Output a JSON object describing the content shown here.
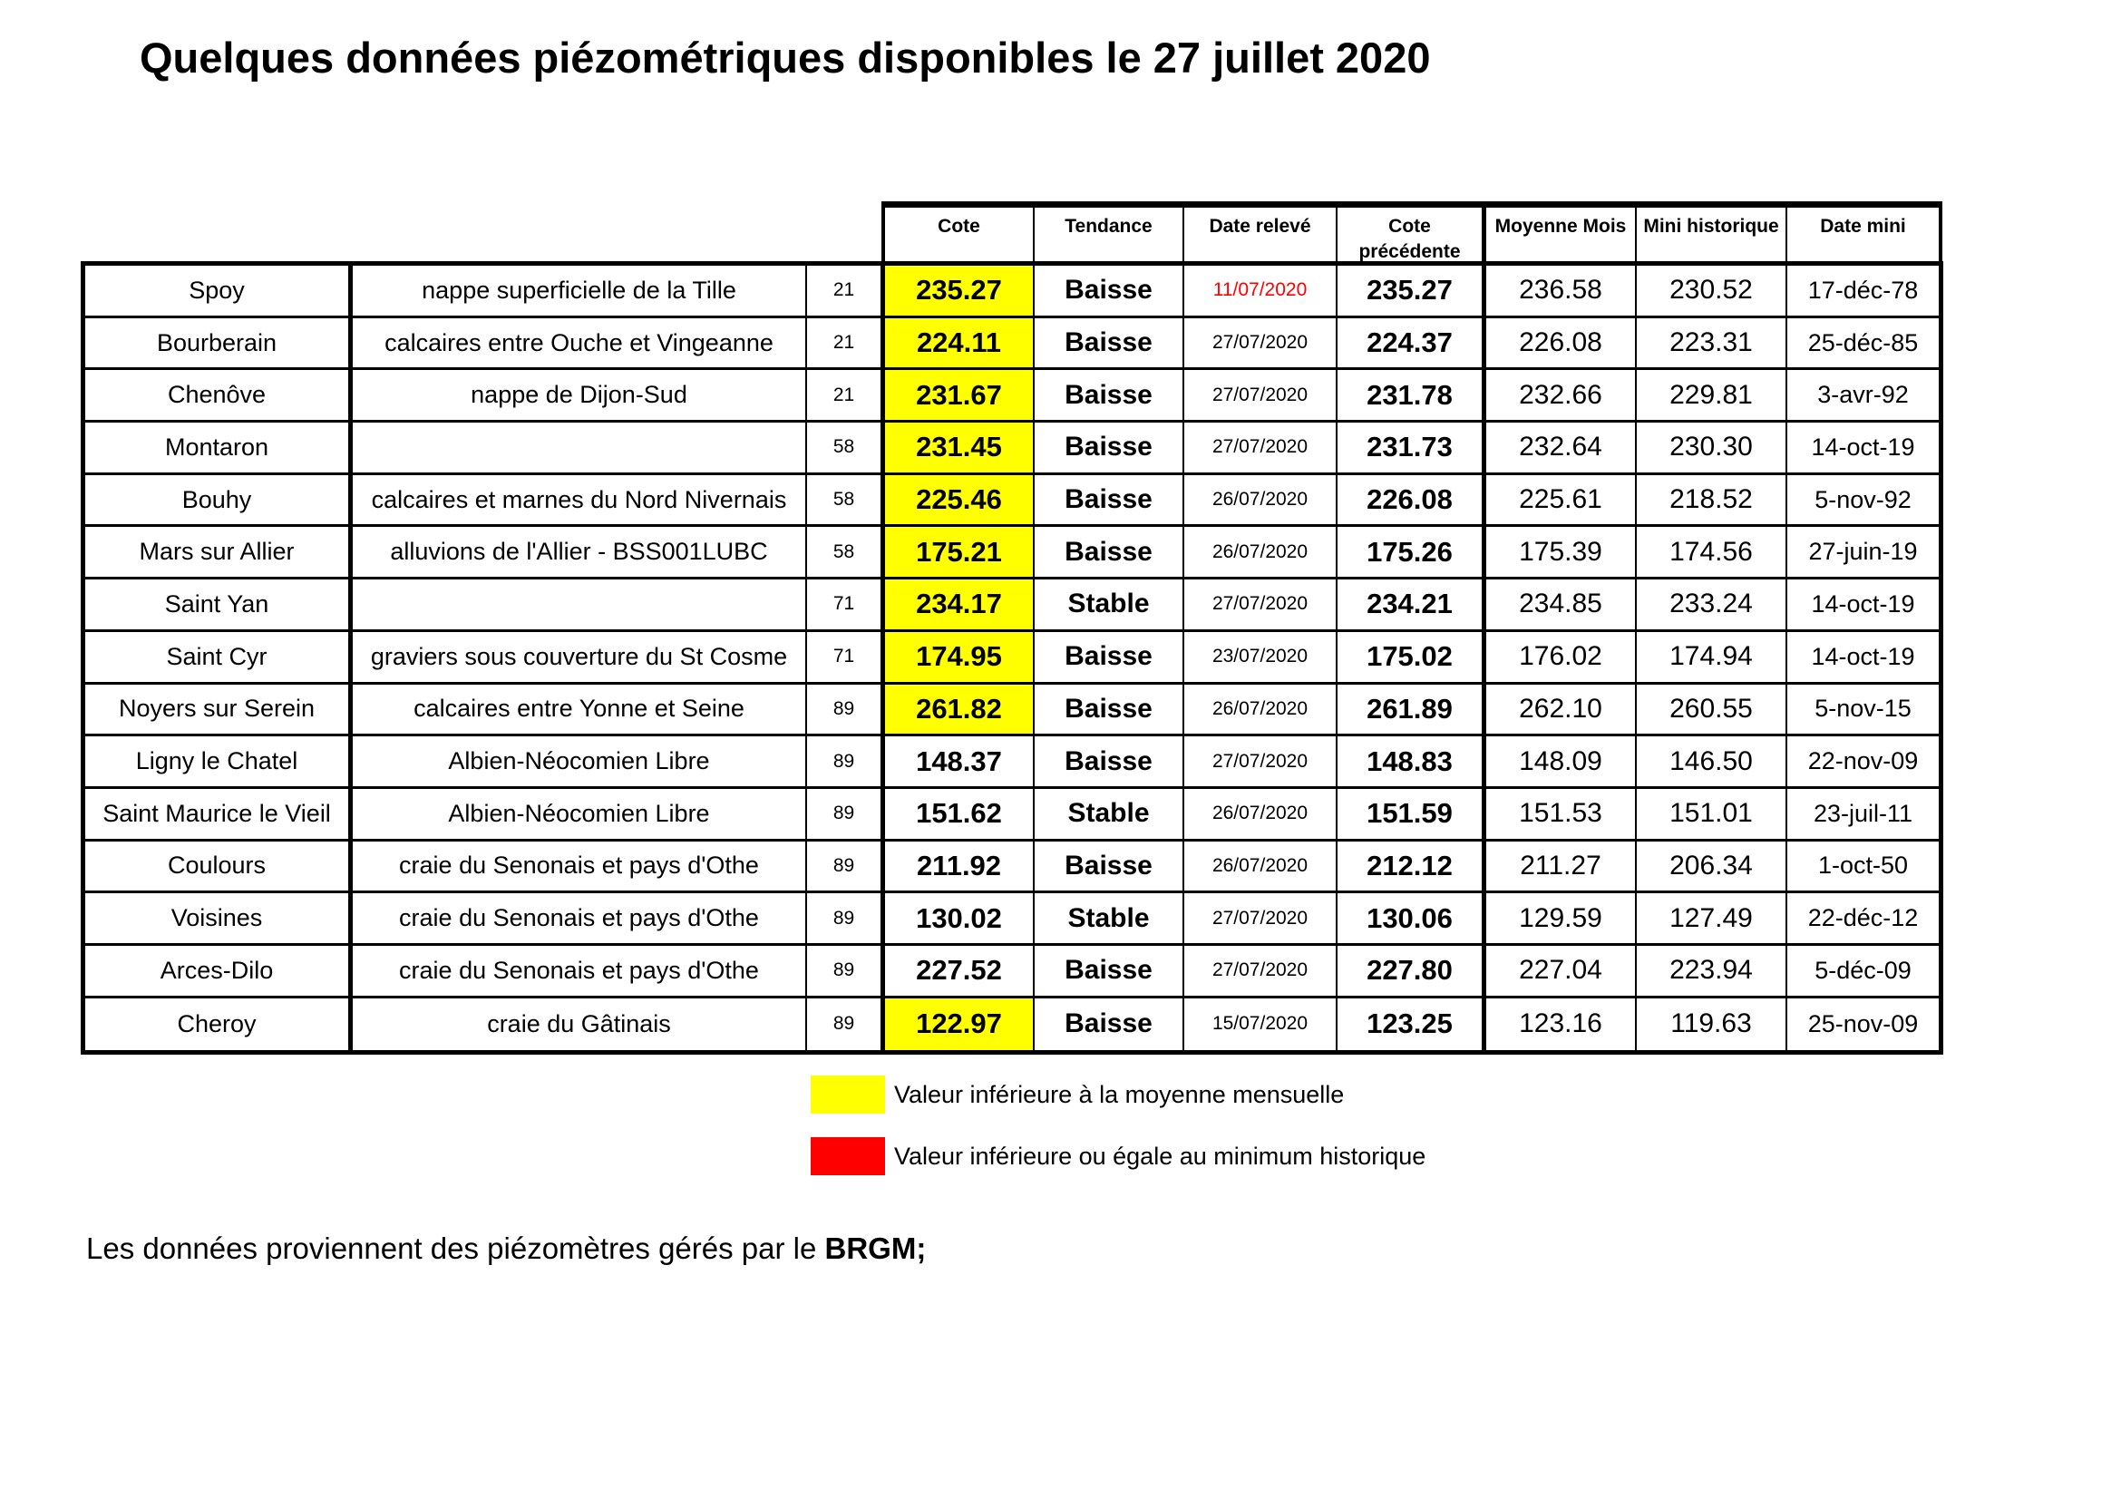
{
  "page": {
    "title": "Quelques données piézométriques disponibles le 27 juillet 2020",
    "footer_text": "Les données proviennent des piézomètres gérés par le ",
    "footer_bold": "BRGM;"
  },
  "colors": {
    "below_monthly_mean_highlight": "#ffff00",
    "below_historic_min_highlight": "#ff0000",
    "alert_date_text": "#ff0000"
  },
  "table": {
    "headers": [
      "Cote",
      "Tendance",
      "Date relevé",
      "Cote précédente",
      "Moyenne Mois",
      "Mini historique",
      "Date mini"
    ],
    "rows": [
      {
        "name": "Spoy",
        "aquifer": "nappe superficielle de la Tille",
        "dept": "21",
        "cote": "235.27",
        "cote_below_mean": true,
        "tendance": "Baisse",
        "date_releve": "11/07/2020",
        "date_alert": true,
        "cote_precedente": "235.27",
        "moyenne_mois": "236.58",
        "mini_historique": "230.52",
        "date_mini": "17-déc-78"
      },
      {
        "name": "Bourberain",
        "aquifer": "calcaires entre Ouche et Vingeanne",
        "dept": "21",
        "cote": "224.11",
        "cote_below_mean": true,
        "tendance": "Baisse",
        "date_releve": "27/07/2020",
        "date_alert": false,
        "cote_precedente": "224.37",
        "moyenne_mois": "226.08",
        "mini_historique": "223.31",
        "date_mini": "25-déc-85"
      },
      {
        "name": "Chenôve",
        "aquifer": "nappe de Dijon-Sud",
        "dept": "21",
        "cote": "231.67",
        "cote_below_mean": true,
        "tendance": "Baisse",
        "date_releve": "27/07/2020",
        "date_alert": false,
        "cote_precedente": "231.78",
        "moyenne_mois": "232.66",
        "mini_historique": "229.81",
        "date_mini": "3-avr-92"
      },
      {
        "name": "Montaron",
        "aquifer": "",
        "dept": "58",
        "cote": "231.45",
        "cote_below_mean": true,
        "tendance": "Baisse",
        "date_releve": "27/07/2020",
        "date_alert": false,
        "cote_precedente": "231.73",
        "moyenne_mois": "232.64",
        "mini_historique": "230.30",
        "date_mini": "14-oct-19"
      },
      {
        "name": "Bouhy",
        "aquifer": "calcaires et marnes du Nord Nivernais",
        "dept": "58",
        "cote": "225.46",
        "cote_below_mean": true,
        "tendance": "Baisse",
        "date_releve": "26/07/2020",
        "date_alert": false,
        "cote_precedente": "226.08",
        "moyenne_mois": "225.61",
        "mini_historique": "218.52",
        "date_mini": "5-nov-92"
      },
      {
        "name": "Mars sur Allier",
        "aquifer": "alluvions de l'Allier - BSS001LUBC",
        "dept": "58",
        "cote": "175.21",
        "cote_below_mean": true,
        "tendance": "Baisse",
        "date_releve": "26/07/2020",
        "date_alert": false,
        "cote_precedente": "175.26",
        "moyenne_mois": "175.39",
        "mini_historique": "174.56",
        "date_mini": "27-juin-19"
      },
      {
        "name": "Saint Yan",
        "aquifer": "",
        "dept": "71",
        "cote": "234.17",
        "cote_below_mean": true,
        "tendance": "Stable",
        "date_releve": "27/07/2020",
        "date_alert": false,
        "cote_precedente": "234.21",
        "moyenne_mois": "234.85",
        "mini_historique": "233.24",
        "date_mini": "14-oct-19"
      },
      {
        "name": "Saint Cyr",
        "aquifer": "graviers sous couverture du St Cosme",
        "dept": "71",
        "cote": "174.95",
        "cote_below_mean": true,
        "tendance": "Baisse",
        "date_releve": "23/07/2020",
        "date_alert": false,
        "cote_precedente": "175.02",
        "moyenne_mois": "176.02",
        "mini_historique": "174.94",
        "date_mini": "14-oct-19"
      },
      {
        "name": "Noyers sur Serein",
        "aquifer": "calcaires entre Yonne et Seine",
        "dept": "89",
        "cote": "261.82",
        "cote_below_mean": true,
        "tendance": "Baisse",
        "date_releve": "26/07/2020",
        "date_alert": false,
        "cote_precedente": "261.89",
        "moyenne_mois": "262.10",
        "mini_historique": "260.55",
        "date_mini": "5-nov-15"
      },
      {
        "name": "Ligny le Chatel",
        "aquifer": "Albien-Néocomien Libre",
        "dept": "89",
        "cote": "148.37",
        "cote_below_mean": false,
        "tendance": "Baisse",
        "date_releve": "27/07/2020",
        "date_alert": false,
        "cote_precedente": "148.83",
        "moyenne_mois": "148.09",
        "mini_historique": "146.50",
        "date_mini": "22-nov-09"
      },
      {
        "name": "Saint Maurice le Vieil",
        "aquifer": "Albien-Néocomien Libre",
        "dept": "89",
        "cote": "151.62",
        "cote_below_mean": false,
        "tendance": "Stable",
        "date_releve": "26/07/2020",
        "date_alert": false,
        "cote_precedente": "151.59",
        "moyenne_mois": "151.53",
        "mini_historique": "151.01",
        "date_mini": "23-juil-11"
      },
      {
        "name": "Coulours",
        "aquifer": "craie du Senonais et pays d'Othe",
        "dept": "89",
        "cote": "211.92",
        "cote_below_mean": false,
        "tendance": "Baisse",
        "date_releve": "26/07/2020",
        "date_alert": false,
        "cote_precedente": "212.12",
        "moyenne_mois": "211.27",
        "mini_historique": "206.34",
        "date_mini": "1-oct-50"
      },
      {
        "name": "Voisines",
        "aquifer": "craie du Senonais et pays d'Othe",
        "dept": "89",
        "cote": "130.02",
        "cote_below_mean": false,
        "tendance": "Stable",
        "date_releve": "27/07/2020",
        "date_alert": false,
        "cote_precedente": "130.06",
        "moyenne_mois": "129.59",
        "mini_historique": "127.49",
        "date_mini": "22-déc-12"
      },
      {
        "name": "Arces-Dilo",
        "aquifer": "craie du Senonais et pays d'Othe",
        "dept": "89",
        "cote": "227.52",
        "cote_below_mean": false,
        "tendance": "Baisse",
        "date_releve": "27/07/2020",
        "date_alert": false,
        "cote_precedente": "227.80",
        "moyenne_mois": "227.04",
        "mini_historique": "223.94",
        "date_mini": "5-déc-09"
      },
      {
        "name": "Cheroy",
        "aquifer": "craie du Gâtinais",
        "dept": "89",
        "cote": "122.97",
        "cote_below_mean": true,
        "tendance": "Baisse",
        "date_releve": "15/07/2020",
        "date_alert": false,
        "cote_precedente": "123.25",
        "moyenne_mois": "123.16",
        "mini_historique": "119.63",
        "date_mini": "25-nov-09"
      }
    ]
  },
  "legend": {
    "items": [
      {
        "swatch": "yellow-swatch",
        "color": "#ffff00",
        "label": "Valeur inférieure à la moyenne mensuelle"
      },
      {
        "swatch": "red-swatch",
        "color": "#ff0000",
        "label": "Valeur inférieure ou égale au minimum historique"
      }
    ]
  }
}
